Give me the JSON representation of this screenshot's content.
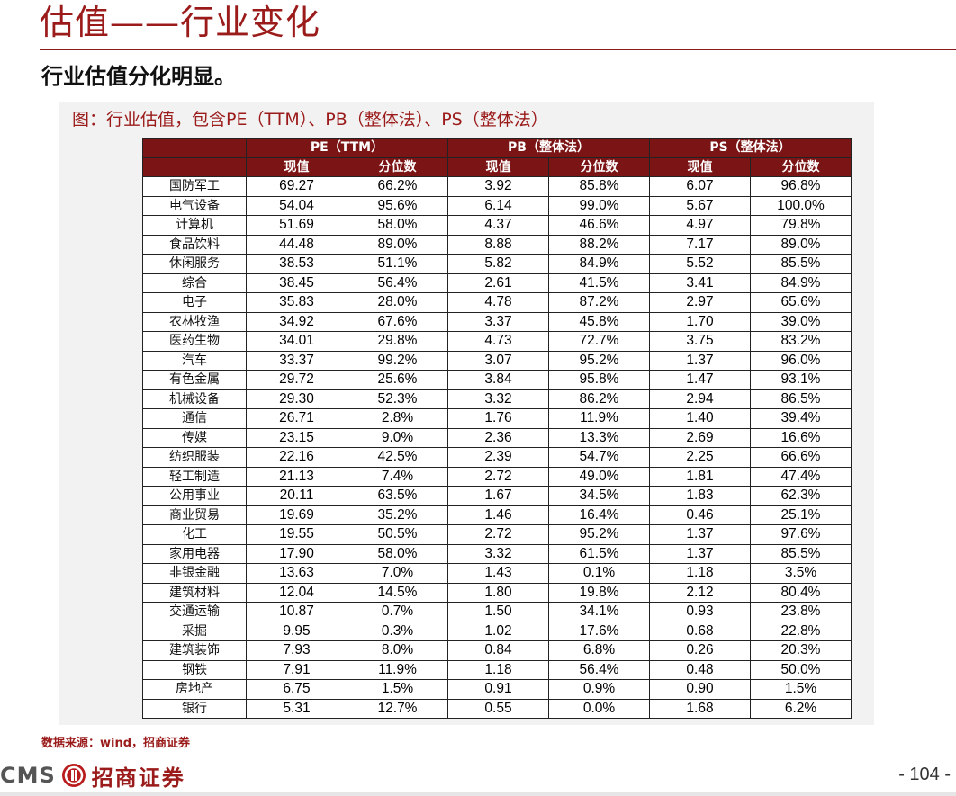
{
  "header": {
    "title": "估值——行业变化",
    "subtitle": "行业估值分化明显。"
  },
  "figure": {
    "caption": "图：行业估值，包含PE（TTM）、PB（整体法）、PS（整体法）",
    "groups": [
      "PE（TTM）",
      "PB（整体法）",
      "PS（整体法）"
    ],
    "subheaders": [
      "现值",
      "分位数",
      "现值",
      "分位数",
      "现值",
      "分位数"
    ],
    "rows": [
      [
        "国防军工",
        "69.27",
        "66.2%",
        "3.92",
        "85.8%",
        "6.07",
        "96.8%"
      ],
      [
        "电气设备",
        "54.04",
        "95.6%",
        "6.14",
        "99.0%",
        "5.67",
        "100.0%"
      ],
      [
        "计算机",
        "51.69",
        "58.0%",
        "4.37",
        "46.6%",
        "4.97",
        "79.8%"
      ],
      [
        "食品饮料",
        "44.48",
        "89.0%",
        "8.88",
        "88.2%",
        "7.17",
        "89.0%"
      ],
      [
        "休闲服务",
        "38.53",
        "51.1%",
        "5.82",
        "84.9%",
        "5.52",
        "85.5%"
      ],
      [
        "综合",
        "38.45",
        "56.4%",
        "2.61",
        "41.5%",
        "3.41",
        "84.9%"
      ],
      [
        "电子",
        "35.83",
        "28.0%",
        "4.78",
        "87.2%",
        "2.97",
        "65.6%"
      ],
      [
        "农林牧渔",
        "34.92",
        "67.6%",
        "3.37",
        "45.8%",
        "1.70",
        "39.0%"
      ],
      [
        "医药生物",
        "34.01",
        "29.8%",
        "4.73",
        "72.7%",
        "3.75",
        "83.2%"
      ],
      [
        "汽车",
        "33.37",
        "99.2%",
        "3.07",
        "95.2%",
        "1.37",
        "96.0%"
      ],
      [
        "有色金属",
        "29.72",
        "25.6%",
        "3.84",
        "95.8%",
        "1.47",
        "93.1%"
      ],
      [
        "机械设备",
        "29.30",
        "52.3%",
        "3.32",
        "86.2%",
        "2.94",
        "86.5%"
      ],
      [
        "通信",
        "26.71",
        "2.8%",
        "1.76",
        "11.9%",
        "1.40",
        "39.4%"
      ],
      [
        "传媒",
        "23.15",
        "9.0%",
        "2.36",
        "13.3%",
        "2.69",
        "16.6%"
      ],
      [
        "纺织服装",
        "22.16",
        "42.5%",
        "2.39",
        "54.7%",
        "2.25",
        "66.6%"
      ],
      [
        "轻工制造",
        "21.13",
        "7.4%",
        "2.72",
        "49.0%",
        "1.81",
        "47.4%"
      ],
      [
        "公用事业",
        "20.11",
        "63.5%",
        "1.67",
        "34.5%",
        "1.83",
        "62.3%"
      ],
      [
        "商业贸易",
        "19.69",
        "35.2%",
        "1.46",
        "16.4%",
        "0.46",
        "25.1%"
      ],
      [
        "化工",
        "19.55",
        "50.5%",
        "2.72",
        "95.2%",
        "1.37",
        "97.6%"
      ],
      [
        "家用电器",
        "17.90",
        "58.0%",
        "3.32",
        "61.5%",
        "1.37",
        "85.5%"
      ],
      [
        "非银金融",
        "13.63",
        "7.0%",
        "1.43",
        "0.1%",
        "1.18",
        "3.5%"
      ],
      [
        "建筑材料",
        "12.04",
        "14.5%",
        "1.80",
        "19.8%",
        "2.12",
        "80.4%"
      ],
      [
        "交通运输",
        "10.87",
        "0.7%",
        "1.50",
        "34.1%",
        "0.93",
        "23.8%"
      ],
      [
        "采掘",
        "9.95",
        "0.3%",
        "1.02",
        "17.6%",
        "0.68",
        "22.8%"
      ],
      [
        "建筑装饰",
        "7.93",
        "8.0%",
        "0.84",
        "6.8%",
        "0.26",
        "20.3%"
      ],
      [
        "钢铁",
        "7.91",
        "11.9%",
        "1.18",
        "56.4%",
        "0.48",
        "50.0%"
      ],
      [
        "房地产",
        "6.75",
        "1.5%",
        "0.91",
        "0.9%",
        "0.90",
        "1.5%"
      ],
      [
        "银行",
        "5.31",
        "12.7%",
        "0.55",
        "0.0%",
        "1.68",
        "6.2%"
      ]
    ],
    "source": "数据来源：wind，招商证券"
  },
  "footer": {
    "logo_latin": "CMS",
    "logo_chinese": "招商证券",
    "page_number": "- 104 -"
  },
  "colors": {
    "brand_red": "#9b1b1b",
    "header_fill": "#7b1414"
  }
}
